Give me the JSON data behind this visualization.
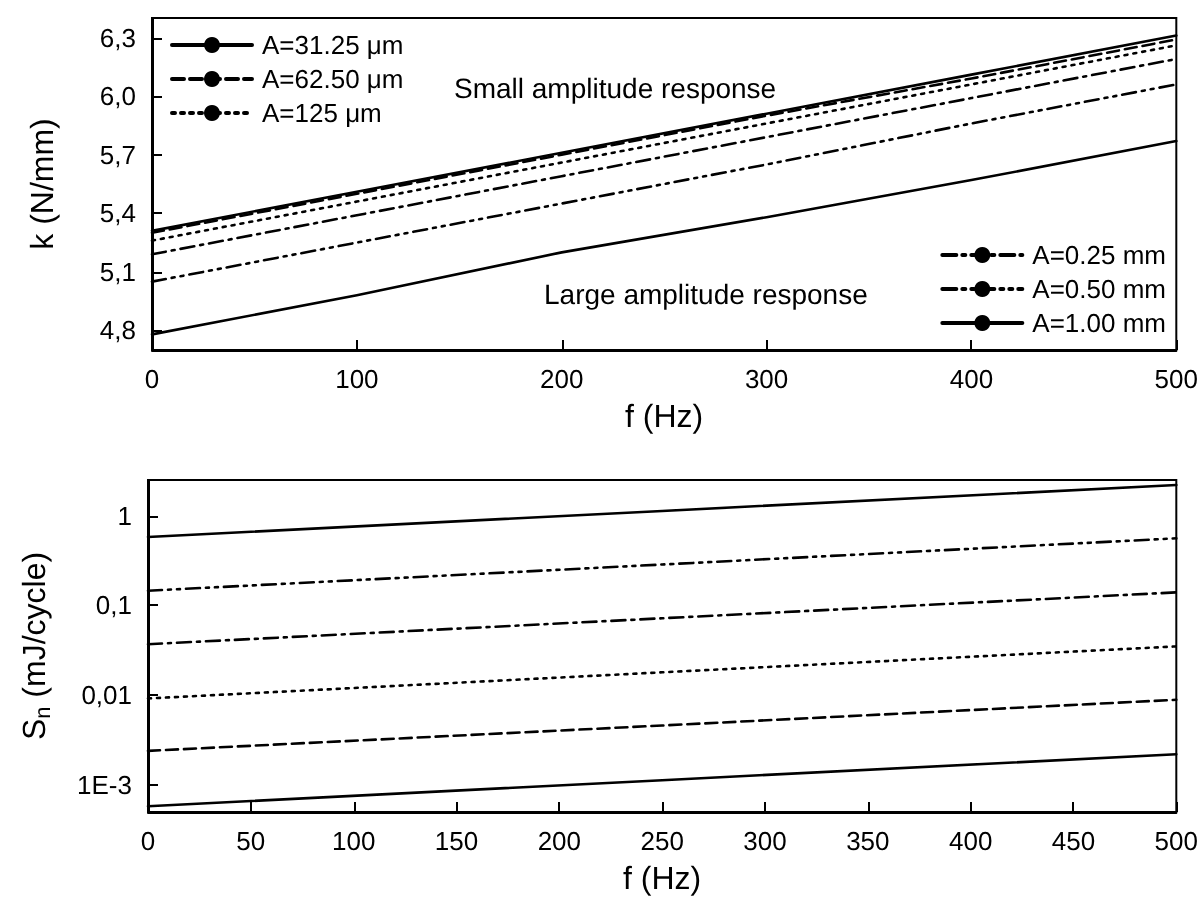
{
  "chart_data": [
    {
      "type": "line",
      "xlabel": "f (Hz)",
      "ylabel": "k (N/mm)",
      "annotations": [
        "Small amplitude response",
        "Large amplitude response"
      ],
      "x": [
        0,
        100,
        200,
        300,
        400,
        500
      ],
      "xlim": [
        0,
        500
      ],
      "xticks": [
        0,
        100,
        200,
        300,
        400,
        500
      ],
      "ylim": [
        4.7,
        6.4
      ],
      "yticks": [
        {
          "value": 4.8,
          "label": "4,8"
        },
        {
          "value": 5.1,
          "label": "5,1"
        },
        {
          "value": 5.4,
          "label": "5,4"
        },
        {
          "value": 5.7,
          "label": "5,7"
        },
        {
          "value": 6.0,
          "label": "6,0"
        },
        {
          "value": 6.3,
          "label": "6,3"
        }
      ],
      "grid": false,
      "legend": "top left",
      "marker": "none",
      "series": [
        {
          "name": "A=31.25 μm",
          "color": "#000000",
          "line_style": "solid",
          "values": [
            5.31,
            5.51,
            5.71,
            5.91,
            6.11,
            6.31
          ]
        },
        {
          "name": "A=62.50 μm",
          "color": "#000000",
          "line_style": "dashed",
          "values": [
            5.3,
            5.5,
            5.7,
            5.9,
            6.09,
            6.29
          ]
        },
        {
          "name": "A=125 μm",
          "color": "#000000",
          "line_style": "dotted",
          "values": [
            5.26,
            5.46,
            5.66,
            5.86,
            6.06,
            6.26
          ]
        },
        {
          "name": "A=0.25 mm",
          "color": "#000000",
          "line_style": "dashdot",
          "values": [
            5.19,
            5.39,
            5.59,
            5.79,
            5.99,
            6.19
          ]
        },
        {
          "name": "A=0.50 mm",
          "color": "#000000",
          "line_style": "dashdotdot",
          "values": [
            5.05,
            5.25,
            5.45,
            5.65,
            5.86,
            6.06
          ]
        },
        {
          "name": "A=1.00 mm",
          "color": "#000000",
          "line_style": "solid",
          "values": [
            4.78,
            4.98,
            5.2,
            5.38,
            5.57,
            5.77
          ]
        }
      ]
    },
    {
      "type": "line",
      "xlabel": "f (Hz)",
      "ylabel": "S$_{n}$ (mJ/cycle)",
      "x": [
        0,
        250,
        500
      ],
      "xlim": [
        0,
        500
      ],
      "xticks": [
        0,
        50,
        100,
        150,
        200,
        250,
        300,
        350,
        400,
        450,
        500
      ],
      "log": "y",
      "ylim": [
        0.0005,
        2.5
      ],
      "yticks": [
        {
          "value": 0.001,
          "label": "1E-3"
        },
        {
          "value": 0.01,
          "label": "0,01"
        },
        {
          "value": 0.1,
          "label": "0,1"
        },
        1
      ],
      "grid": false,
      "legend": false,
      "marker": "none",
      "series": [
        {
          "color": "#000000",
          "line_style": "solid",
          "values": [
            0.00058,
            0.00113,
            0.0022
          ]
        },
        {
          "color": "#000000",
          "line_style": "dashed",
          "values": [
            0.0024,
            0.0046,
            0.0089
          ]
        },
        {
          "color": "#000000",
          "line_style": "dotted",
          "values": [
            0.0092,
            0.018,
            0.035
          ]
        },
        {
          "color": "#000000",
          "line_style": "dashdot",
          "values": [
            0.037,
            0.072,
            0.14
          ]
        },
        {
          "color": "#000000",
          "line_style": "dashdotdot",
          "values": [
            0.146,
            0.286,
            0.56
          ]
        },
        {
          "color": "#000000",
          "line_style": "solid",
          "values": [
            0.58,
            1.13,
            2.2
          ]
        }
      ]
    }
  ]
}
